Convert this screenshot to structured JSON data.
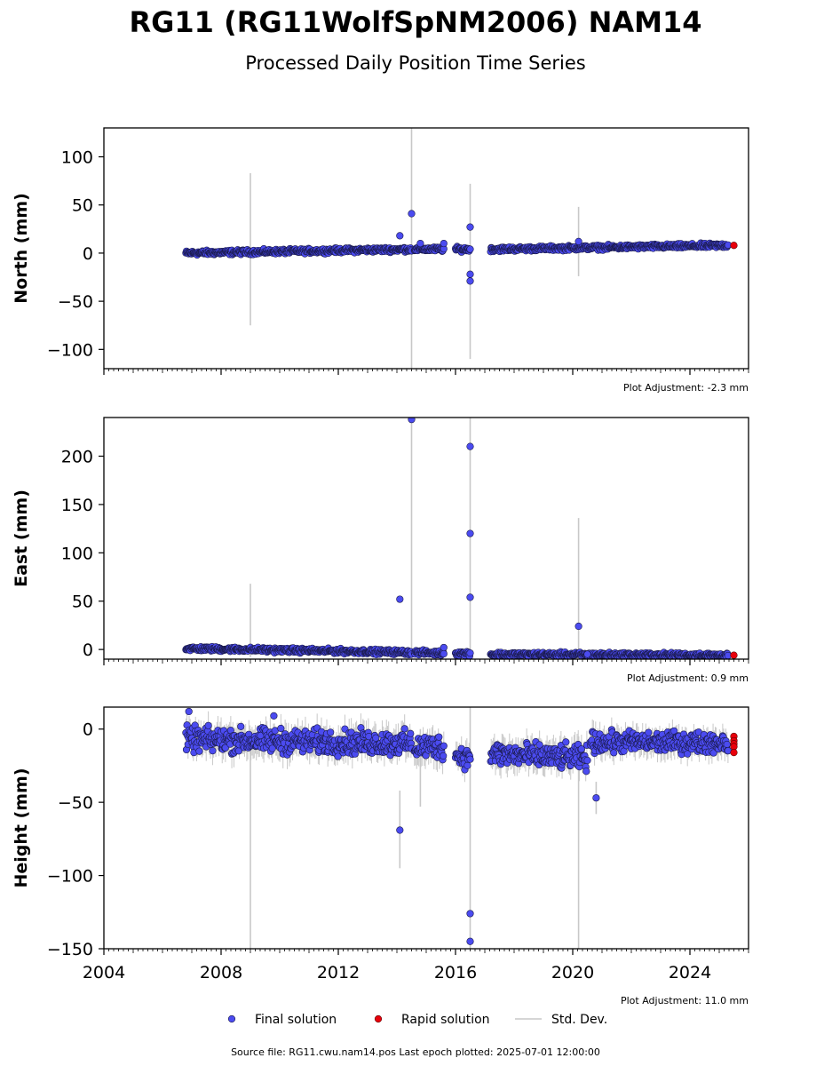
{
  "title": "RG11 (RG11WolfSpNM2006) NAM14",
  "subtitle": "Processed Daily Position Time Series",
  "footer": "Source file: RG11.cwu.nam14.pos  Last epoch plotted: 2025-07-01 12:00:00",
  "legend": {
    "placement": "bottom-center",
    "items": [
      {
        "label": "Final solution",
        "color": "#4b4bf0"
      },
      {
        "label": "Rapid solution",
        "color": "#e8000b"
      },
      {
        "label": "Std. Dev.",
        "color": "#c8c8c8"
      }
    ]
  },
  "colors": {
    "final": "#4b4bf0",
    "rapid": "#e8000b",
    "stddev": "#c8c8c8",
    "edge": "#1a1a4a"
  },
  "chart_data": [
    {
      "type": "scatter",
      "ylabel": "North (mm)",
      "adjustment": "Plot Adjustment: -2.3 mm",
      "xlim": [
        2004,
        2026
      ],
      "ylim": [
        -120,
        130
      ],
      "yticks": [
        -100,
        -50,
        0,
        50,
        100
      ],
      "xticks": [
        2004,
        2008,
        2012,
        2016,
        2020,
        2024
      ],
      "grid": false,
      "segments": [
        {
          "x_start": 2006.8,
          "x_end": 2014.5,
          "y_start": 0,
          "y_end": 4,
          "spread": 2
        },
        {
          "x_start": 2014.6,
          "x_end": 2015.6,
          "y_start": 4,
          "y_end": 4,
          "spread": 2
        },
        {
          "x_start": 2016.0,
          "x_end": 2016.5,
          "y_start": 4,
          "y_end": 4,
          "spread": 2
        },
        {
          "x_start": 2017.2,
          "x_end": 2025.3,
          "y_start": 4,
          "y_end": 8,
          "spread": 2
        }
      ],
      "outliers": [
        {
          "x": 2014.1,
          "y": 18
        },
        {
          "x": 2014.5,
          "y": 41
        },
        {
          "x": 2014.8,
          "y": 10
        },
        {
          "x": 2015.6,
          "y": 10
        },
        {
          "x": 2016.5,
          "y": 27
        },
        {
          "x": 2016.5,
          "y": -22
        },
        {
          "x": 2016.5,
          "y": -29
        },
        {
          "x": 2020.2,
          "y": 12
        }
      ],
      "stddev_bars": [
        {
          "x": 2009.0,
          "low": -75,
          "high": 83
        },
        {
          "x": 2014.5,
          "low": -120,
          "high": 130
        },
        {
          "x": 2016.5,
          "low": -110,
          "high": 72
        },
        {
          "x": 2020.2,
          "low": -24,
          "high": 48
        }
      ],
      "rapid": [
        {
          "x": 2025.5,
          "y": 8
        }
      ]
    },
    {
      "type": "scatter",
      "ylabel": "East (mm)",
      "adjustment": "Plot Adjustment: 0.9 mm",
      "xlim": [
        2004,
        2026
      ],
      "ylim": [
        -10,
        240
      ],
      "yticks": [
        0,
        50,
        100,
        150,
        200
      ],
      "xticks": [
        2004,
        2008,
        2012,
        2016,
        2020,
        2024
      ],
      "grid": false,
      "segments": [
        {
          "x_start": 2006.8,
          "x_end": 2014.5,
          "y_start": 1,
          "y_end": -3,
          "spread": 2
        },
        {
          "x_start": 2014.6,
          "x_end": 2015.6,
          "y_start": -3,
          "y_end": -4,
          "spread": 2
        },
        {
          "x_start": 2016.0,
          "x_end": 2016.5,
          "y_start": -4,
          "y_end": -4,
          "spread": 2
        },
        {
          "x_start": 2017.2,
          "x_end": 2025.3,
          "y_start": -5,
          "y_end": -6,
          "spread": 2
        }
      ],
      "outliers": [
        {
          "x": 2014.1,
          "y": 52
        },
        {
          "x": 2014.5,
          "y": 238
        },
        {
          "x": 2015.6,
          "y": 2
        },
        {
          "x": 2016.5,
          "y": 210
        },
        {
          "x": 2016.5,
          "y": 120
        },
        {
          "x": 2016.5,
          "y": 54
        },
        {
          "x": 2020.2,
          "y": 24
        },
        {
          "x": 2020.5,
          "y": -5
        }
      ],
      "stddev_bars": [
        {
          "x": 2009.0,
          "low": -8,
          "high": 68
        },
        {
          "x": 2014.5,
          "low": -10,
          "high": 240
        },
        {
          "x": 2016.5,
          "low": -10,
          "high": 240
        },
        {
          "x": 2020.2,
          "low": -10,
          "high": 136
        }
      ],
      "rapid": [
        {
          "x": 2025.5,
          "y": -6
        }
      ]
    },
    {
      "type": "scatter",
      "ylabel": "Height (mm)",
      "adjustment": "Plot Adjustment: 11.0 mm",
      "xlim": [
        2004,
        2026
      ],
      "ylim": [
        -150,
        15
      ],
      "yticks": [
        -150,
        -100,
        -50,
        0
      ],
      "xticks": [
        2004,
        2008,
        2012,
        2016,
        2020,
        2024
      ],
      "grid": false,
      "segments": [
        {
          "x_start": 2006.8,
          "x_end": 2014.5,
          "y_start": -7,
          "y_end": -10,
          "spread": 7
        },
        {
          "x_start": 2014.6,
          "x_end": 2015.6,
          "y_start": -12,
          "y_end": -12,
          "spread": 7
        },
        {
          "x_start": 2016.0,
          "x_end": 2016.5,
          "y_start": -18,
          "y_end": -20,
          "spread": 6
        },
        {
          "x_start": 2017.2,
          "x_end": 2020.5,
          "y_start": -17,
          "y_end": -20,
          "spread": 7
        },
        {
          "x_start": 2020.6,
          "x_end": 2025.3,
          "y_start": -9,
          "y_end": -9,
          "spread": 6
        }
      ],
      "outliers": [
        {
          "x": 2014.1,
          "y": -69
        },
        {
          "x": 2016.5,
          "y": -126
        },
        {
          "x": 2016.5,
          "y": -145
        },
        {
          "x": 2020.8,
          "y": -47
        },
        {
          "x": 2006.9,
          "y": 12
        },
        {
          "x": 2009.8,
          "y": 9
        }
      ],
      "stddev_bars": [
        {
          "x": 2009.0,
          "low": -150,
          "high": 0
        },
        {
          "x": 2014.1,
          "low": -95,
          "high": -42
        },
        {
          "x": 2014.8,
          "low": -53,
          "high": 0
        },
        {
          "x": 2016.5,
          "low": -150,
          "high": 15
        },
        {
          "x": 2020.2,
          "low": -150,
          "high": -5
        },
        {
          "x": 2020.8,
          "low": -58,
          "high": -36
        }
      ],
      "rapid": [
        {
          "x": 2025.5,
          "y": -5
        },
        {
          "x": 2025.5,
          "y": -8
        },
        {
          "x": 2025.5,
          "y": -10
        },
        {
          "x": 2025.5,
          "y": -12
        },
        {
          "x": 2025.5,
          "y": -16
        }
      ]
    }
  ]
}
